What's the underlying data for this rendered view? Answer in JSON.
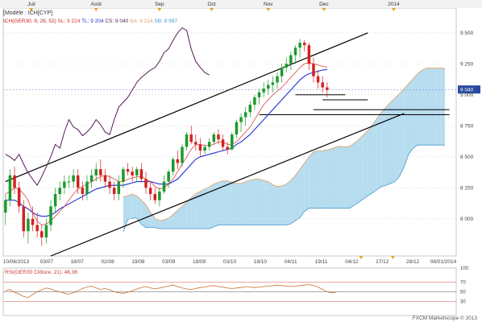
{
  "top_axis": {
    "months": [
      {
        "label": "Juil",
        "pos": 0.062
      },
      {
        "label": "Août",
        "pos": 0.205
      },
      {
        "label": "Sep",
        "pos": 0.345
      },
      {
        "label": "Oct",
        "pos": 0.46
      },
      {
        "label": "Nov",
        "pos": 0.585
      },
      {
        "label": "Dec",
        "pos": 0.708
      },
      {
        "label": "2014",
        "pos": 0.862
      }
    ]
  },
  "legend": {
    "line1": "[Modèle : ICH[CYP]",
    "items": [
      {
        "text": "ICH(GER30, 9, 26, 52)",
        "color": "#cc2222"
      },
      {
        "text": "SL: 9 224",
        "color": "#dd3333"
      },
      {
        "text": "TL: 9 204",
        "color": "#2233cc"
      },
      {
        "text": "CS: 9 040",
        "color": "#552255"
      },
      {
        "text": "SA: 9 214",
        "color": "#e0a060"
      },
      {
        "text": "SB: 8 997",
        "color": "#4499cc"
      }
    ]
  },
  "price_axis": {
    "ticks": [
      "9 500",
      "9 250",
      "9 040",
      "9 000",
      "8 750",
      "8 500",
      "8 250",
      "8 000"
    ],
    "last_price": "9 040"
  },
  "date_axis": {
    "labels": [
      "10/06/2013",
      "03/07",
      "18/07",
      "02/08",
      "19/08",
      "03/09",
      "18/09",
      "03/10",
      "18/10",
      "04/11",
      "19/11",
      "04/12",
      "17/12",
      "28/12",
      "08/01/2014"
    ]
  },
  "rsi": {
    "label": "RSI(GER30 Clôture, 21): 48,36",
    "ticks": [
      "100",
      "70",
      "50",
      "30"
    ],
    "values": [
      52,
      55,
      49,
      45,
      40,
      38,
      44,
      50,
      54,
      58,
      56,
      52,
      50,
      47,
      45,
      48,
      52,
      57,
      60,
      62,
      58,
      55,
      57,
      54,
      50,
      48,
      47,
      49,
      52,
      56,
      59,
      61,
      58,
      56,
      58,
      60,
      62,
      64,
      61,
      58,
      56,
      55,
      57,
      59,
      60,
      62,
      63,
      61,
      60,
      58,
      57,
      58,
      59,
      61,
      60,
      59,
      60,
      61,
      62,
      63,
      64,
      63,
      62,
      61,
      62,
      63,
      64,
      65,
      63,
      60,
      55,
      50,
      48,
      49
    ]
  },
  "footer": "FXCM Marketscope © 2013",
  "chart_data": {
    "type": "candlestick",
    "series_name": "GER30",
    "y_range": [
      7700,
      9700
    ],
    "candles": [
      [
        8050,
        8200,
        7950,
        8150
      ],
      [
        8150,
        8400,
        8100,
        8350
      ],
      [
        8350,
        8420,
        8200,
        8250
      ],
      [
        8250,
        8300,
        8050,
        8100
      ],
      [
        8100,
        8150,
        7850,
        7900
      ],
      [
        7900,
        8050,
        7800,
        8000
      ],
      [
        8000,
        8100,
        7900,
        7950
      ],
      [
        7950,
        8050,
        7850,
        7900
      ],
      [
        7900,
        7950,
        7780,
        7850
      ],
      [
        7850,
        8000,
        7800,
        7950
      ],
      [
        7950,
        8150,
        7900,
        8100
      ],
      [
        8100,
        8250,
        8050,
        8200
      ],
      [
        8200,
        8300,
        8150,
        8250
      ],
      [
        8250,
        8350,
        8200,
        8300
      ],
      [
        8300,
        8350,
        8250,
        8300
      ],
      [
        8300,
        8400,
        8250,
        8350
      ],
      [
        8350,
        8400,
        8200,
        8250
      ],
      [
        8250,
        8300,
        8150,
        8200
      ],
      [
        8200,
        8350,
        8150,
        8300
      ],
      [
        8300,
        8400,
        8250,
        8350
      ],
      [
        8350,
        8450,
        8300,
        8400
      ],
      [
        8400,
        8480,
        8300,
        8350
      ],
      [
        8350,
        8400,
        8250,
        8300
      ],
      [
        8300,
        8350,
        8200,
        8250
      ],
      [
        8250,
        8300,
        8150,
        8200
      ],
      [
        8200,
        8350,
        8150,
        8300
      ],
      [
        8300,
        8420,
        8250,
        8400
      ],
      [
        8400,
        8450,
        8350,
        8380
      ],
      [
        8380,
        8420,
        8300,
        8350
      ],
      [
        8350,
        8420,
        8300,
        8400
      ],
      [
        8400,
        8450,
        8300,
        8320
      ],
      [
        8320,
        8380,
        8200,
        8250
      ],
      [
        8250,
        8300,
        8150,
        8200
      ],
      [
        8200,
        8250,
        8120,
        8150
      ],
      [
        8150,
        8250,
        8100,
        8220
      ],
      [
        8220,
        8350,
        8200,
        8300
      ],
      [
        8300,
        8400,
        8250,
        8380
      ],
      [
        8380,
        8500,
        8350,
        8480
      ],
      [
        8480,
        8550,
        8400,
        8450
      ],
      [
        8450,
        8600,
        8420,
        8580
      ],
      [
        8580,
        8700,
        8550,
        8680
      ],
      [
        8680,
        8750,
        8600,
        8620
      ],
      [
        8620,
        8680,
        8550,
        8600
      ],
      [
        8600,
        8650,
        8500,
        8550
      ],
      [
        8550,
        8600,
        8520,
        8580
      ],
      [
        8580,
        8650,
        8550,
        8620
      ],
      [
        8620,
        8700,
        8600,
        8680
      ],
      [
        8680,
        8720,
        8600,
        8640
      ],
      [
        8640,
        8680,
        8550,
        8580
      ],
      [
        8580,
        8620,
        8520,
        8560
      ],
      [
        8560,
        8700,
        8550,
        8680
      ],
      [
        8680,
        8800,
        8650,
        8780
      ],
      [
        8780,
        8850,
        8700,
        8820
      ],
      [
        8820,
        8900,
        8750,
        8860
      ],
      [
        8860,
        8950,
        8820,
        8920
      ],
      [
        8920,
        9000,
        8880,
        8980
      ],
      [
        8980,
        9050,
        8920,
        9020
      ],
      [
        9020,
        9100,
        8980,
        9050
      ],
      [
        9050,
        9120,
        9000,
        9080
      ],
      [
        9080,
        9150,
        9020,
        9100
      ],
      [
        9100,
        9180,
        9050,
        9150
      ],
      [
        9150,
        9250,
        9100,
        9220
      ],
      [
        9220,
        9300,
        9180,
        9250
      ],
      [
        9250,
        9350,
        9200,
        9320
      ],
      [
        9320,
        9400,
        9250,
        9380
      ],
      [
        9380,
        9450,
        9300,
        9420
      ],
      [
        9420,
        9440,
        9350,
        9400
      ],
      [
        9400,
        9420,
        9200,
        9250
      ],
      [
        9250,
        9300,
        9100,
        9150
      ],
      [
        9150,
        9200,
        9050,
        9100
      ],
      [
        9100,
        9150,
        9020,
        9060
      ],
      [
        9060,
        9100,
        8980,
        9040
      ]
    ],
    "tenkan": [
      8200,
      8220,
      8250,
      8240,
      8200,
      8150,
      8050,
      7980,
      7950,
      7960,
      7980,
      8020,
      8060,
      8100,
      8150,
      8200,
      8240,
      8260,
      8280,
      8300,
      8320,
      8340,
      8350,
      8340,
      8320,
      8300,
      8300,
      8320,
      8330,
      8340,
      8340,
      8320,
      8300,
      8260,
      8240,
      8250,
      8280,
      8320,
      8380,
      8440,
      8500,
      8560,
      8600,
      8600,
      8590,
      8590,
      8600,
      8620,
      8620,
      8600,
      8600,
      8620,
      8660,
      8700,
      8740,
      8800,
      8860,
      8920,
      8960,
      9000,
      9030,
      9060,
      9100,
      9140,
      9180,
      9220,
      9250,
      9260,
      9250,
      9240,
      9230,
      9224
    ],
    "kijun": [
      8150,
      8150,
      8150,
      8130,
      8100,
      8080,
      8050,
      8030,
      8020,
      8020,
      8030,
      8050,
      8080,
      8100,
      8120,
      8140,
      8160,
      8180,
      8200,
      8220,
      8240,
      8250,
      8260,
      8270,
      8270,
      8270,
      8270,
      8280,
      8290,
      8300,
      8300,
      8300,
      8300,
      8290,
      8280,
      8280,
      8280,
      8300,
      8320,
      8360,
      8400,
      8440,
      8480,
      8500,
      8510,
      8520,
      8530,
      8540,
      8550,
      8560,
      8570,
      8600,
      8620,
      8650,
      8680,
      8720,
      8760,
      8800,
      8840,
      8880,
      8920,
      8960,
      9000,
      9040,
      9080,
      9120,
      9150,
      9170,
      9180,
      9190,
      9200,
      9204
    ]
  }
}
